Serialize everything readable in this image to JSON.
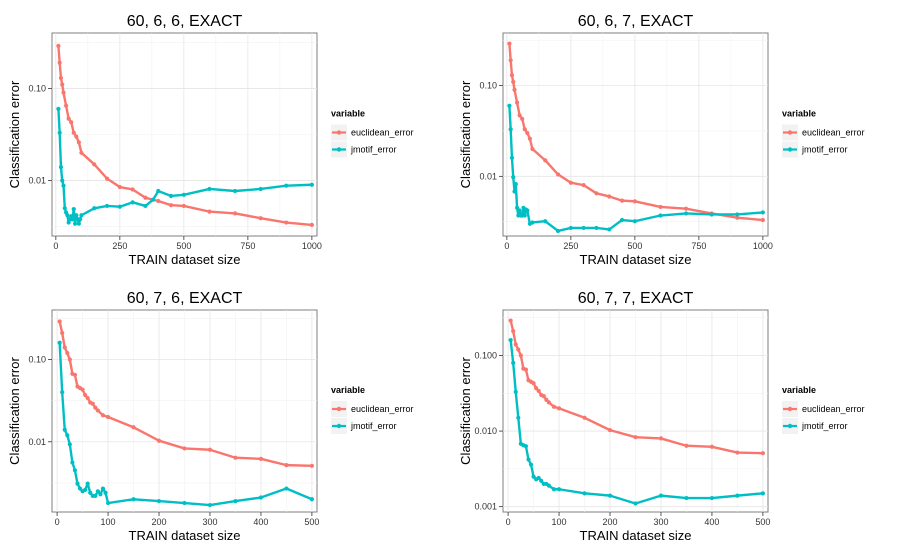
{
  "chart_data": [
    {
      "type": "line",
      "title": "60, 6, 6, EXACT",
      "xlabel": "TRAIN dataset size",
      "ylabel": "Classification error",
      "scale_y": "log10",
      "xlim": [
        -15,
        1020
      ],
      "ylim": [
        0.0025,
        0.4
      ],
      "x_ticks": [
        0,
        250,
        500,
        750,
        1000
      ],
      "x_tick_labels": [
        "0",
        "250",
        "500",
        "750",
        "1000"
      ],
      "y_ticks": [
        0.01,
        0.1
      ],
      "y_tick_labels": [
        "0.01",
        "0.10"
      ],
      "grid": true,
      "legend": {
        "title": "variable",
        "position": "right"
      },
      "series": [
        {
          "name": "euclidean_error",
          "color": "#F8766D",
          "x": [
            10,
            15,
            20,
            25,
            30,
            40,
            50,
            60,
            70,
            80,
            90,
            100,
            150,
            200,
            250,
            300,
            350,
            400,
            450,
            500,
            600,
            700,
            800,
            900,
            1000
          ],
          "y": [
            0.29,
            0.19,
            0.13,
            0.11,
            0.09,
            0.065,
            0.047,
            0.043,
            0.033,
            0.03,
            0.026,
            0.02,
            0.015,
            0.0105,
            0.0085,
            0.008,
            0.0065,
            0.006,
            0.0054,
            0.0053,
            0.0046,
            0.0044,
            0.0039,
            0.0035,
            0.0033
          ]
        },
        {
          "name": "jmotif_error",
          "color": "#00BFC4",
          "x": [
            10,
            15,
            20,
            25,
            30,
            35,
            40,
            45,
            50,
            55,
            60,
            65,
            70,
            75,
            80,
            85,
            90,
            95,
            100,
            150,
            200,
            250,
            300,
            350,
            380,
            400,
            450,
            500,
            600,
            700,
            800,
            900,
            1000
          ],
          "y": [
            0.06,
            0.033,
            0.014,
            0.01,
            0.0088,
            0.005,
            0.0045,
            0.0042,
            0.0035,
            0.0038,
            0.0041,
            0.0038,
            0.0049,
            0.0034,
            0.0042,
            0.0038,
            0.0034,
            0.0038,
            0.0042,
            0.005,
            0.0053,
            0.0052,
            0.0058,
            0.0053,
            0.0062,
            0.0077,
            0.0068,
            0.007,
            0.0081,
            0.0077,
            0.0081,
            0.0088,
            0.009
          ]
        }
      ]
    },
    {
      "type": "line",
      "title": "60, 6, 7, EXACT",
      "xlabel": "TRAIN dataset size",
      "ylabel": "Classification error",
      "scale_y": "log10",
      "xlim": [
        -15,
        1020
      ],
      "ylim": [
        0.0022,
        0.38
      ],
      "x_ticks": [
        0,
        250,
        500,
        750,
        1000
      ],
      "x_tick_labels": [
        "0",
        "250",
        "500",
        "750",
        "1000"
      ],
      "y_ticks": [
        0.01,
        0.1
      ],
      "y_tick_labels": [
        "0.01",
        "0.10"
      ],
      "grid": true,
      "legend": {
        "title": "variable",
        "position": "right"
      },
      "series": [
        {
          "name": "euclidean_error",
          "color": "#F8766D",
          "x": [
            10,
            15,
            20,
            25,
            30,
            40,
            50,
            60,
            70,
            80,
            90,
            100,
            150,
            200,
            250,
            300,
            350,
            400,
            450,
            500,
            600,
            700,
            800,
            900,
            1000
          ],
          "y": [
            0.29,
            0.19,
            0.13,
            0.11,
            0.09,
            0.065,
            0.047,
            0.043,
            0.033,
            0.03,
            0.026,
            0.02,
            0.015,
            0.0105,
            0.0085,
            0.008,
            0.0065,
            0.006,
            0.0054,
            0.0053,
            0.0046,
            0.0044,
            0.0039,
            0.0035,
            0.0033
          ]
        },
        {
          "name": "jmotif_error",
          "color": "#00BFC4",
          "x": [
            10,
            15,
            20,
            25,
            30,
            35,
            40,
            45,
            50,
            55,
            60,
            65,
            70,
            75,
            80,
            90,
            100,
            150,
            200,
            250,
            300,
            350,
            400,
            450,
            500,
            600,
            700,
            800,
            900,
            1000
          ],
          "y": [
            0.06,
            0.033,
            0.016,
            0.0098,
            0.0068,
            0.0082,
            0.0045,
            0.0037,
            0.0042,
            0.0037,
            0.0037,
            0.0045,
            0.0037,
            0.0043,
            0.0042,
            0.003,
            0.0031,
            0.0032,
            0.0025,
            0.0027,
            0.0027,
            0.0027,
            0.0026,
            0.0033,
            0.0032,
            0.0037,
            0.0039,
            0.0038,
            0.0038,
            0.004
          ]
        }
      ]
    },
    {
      "type": "line",
      "title": "60, 7, 6, EXACT",
      "xlabel": "TRAIN dataset size",
      "ylabel": "Classification error",
      "scale_y": "log10",
      "xlim": [
        -10,
        510
      ],
      "ylim": [
        0.0014,
        0.4
      ],
      "x_ticks": [
        0,
        100,
        200,
        300,
        400,
        500
      ],
      "x_tick_labels": [
        "0",
        "100",
        "200",
        "300",
        "400",
        "500"
      ],
      "y_ticks": [
        0.01,
        0.1
      ],
      "y_tick_labels": [
        "0.01",
        "0.10"
      ],
      "grid": true,
      "legend": {
        "title": "variable",
        "position": "right"
      },
      "series": [
        {
          "name": "euclidean_error",
          "color": "#F8766D",
          "x": [
            5,
            10,
            15,
            20,
            25,
            30,
            35,
            40,
            45,
            50,
            55,
            60,
            65,
            70,
            75,
            80,
            90,
            100,
            150,
            200,
            250,
            300,
            350,
            400,
            450,
            500
          ],
          "y": [
            0.29,
            0.21,
            0.14,
            0.12,
            0.1,
            0.067,
            0.065,
            0.047,
            0.045,
            0.043,
            0.037,
            0.034,
            0.03,
            0.029,
            0.026,
            0.024,
            0.021,
            0.02,
            0.015,
            0.0103,
            0.0083,
            0.008,
            0.0064,
            0.0062,
            0.0052,
            0.0051
          ]
        },
        {
          "name": "jmotif_error",
          "color": "#00BFC4",
          "x": [
            5,
            10,
            15,
            20,
            25,
            30,
            35,
            40,
            45,
            50,
            55,
            60,
            65,
            70,
            75,
            80,
            85,
            90,
            95,
            100,
            150,
            200,
            250,
            300,
            350,
            400,
            450,
            500
          ],
          "y": [
            0.16,
            0.04,
            0.014,
            0.012,
            0.0093,
            0.0056,
            0.0045,
            0.0031,
            0.0027,
            0.0025,
            0.0026,
            0.0031,
            0.0024,
            0.0022,
            0.0022,
            0.0025,
            0.0023,
            0.0027,
            0.0024,
            0.0018,
            0.002,
            0.0019,
            0.0018,
            0.0017,
            0.0019,
            0.0021,
            0.0027,
            0.002
          ]
        }
      ]
    },
    {
      "type": "line",
      "title": "60, 7, 7, EXACT",
      "xlabel": "TRAIN dataset size",
      "ylabel": "Classification error",
      "scale_y": "log10",
      "xlim": [
        -10,
        510
      ],
      "ylim": [
        0.00085,
        0.4
      ],
      "x_ticks": [
        0,
        100,
        200,
        300,
        400,
        500
      ],
      "x_tick_labels": [
        "0",
        "100",
        "200",
        "300",
        "400",
        "500"
      ],
      "y_ticks": [
        0.001,
        0.01,
        0.1
      ],
      "y_tick_labels": [
        "0.001",
        "0.010",
        "0.100"
      ],
      "grid": true,
      "legend": {
        "title": "variable",
        "position": "right"
      },
      "series": [
        {
          "name": "euclidean_error",
          "color": "#F8766D",
          "x": [
            5,
            10,
            15,
            20,
            25,
            30,
            35,
            40,
            45,
            50,
            55,
            60,
            65,
            70,
            75,
            80,
            90,
            100,
            150,
            200,
            250,
            300,
            350,
            400,
            450,
            500
          ],
          "y": [
            0.29,
            0.21,
            0.14,
            0.12,
            0.1,
            0.067,
            0.065,
            0.047,
            0.045,
            0.043,
            0.037,
            0.034,
            0.03,
            0.029,
            0.026,
            0.024,
            0.021,
            0.02,
            0.015,
            0.0103,
            0.0083,
            0.008,
            0.0064,
            0.0062,
            0.0052,
            0.0051
          ]
        },
        {
          "name": "jmotif_error",
          "color": "#00BFC4",
          "x": [
            5,
            10,
            15,
            20,
            25,
            30,
            35,
            40,
            45,
            50,
            55,
            60,
            65,
            70,
            75,
            80,
            90,
            100,
            150,
            200,
            250,
            300,
            350,
            400,
            450,
            500
          ],
          "y": [
            0.16,
            0.08,
            0.033,
            0.015,
            0.0068,
            0.0065,
            0.0063,
            0.0042,
            0.0036,
            0.0025,
            0.0023,
            0.0024,
            0.0022,
            0.002,
            0.002,
            0.0019,
            0.0017,
            0.0017,
            0.0015,
            0.0014,
            0.0011,
            0.0014,
            0.0013,
            0.0013,
            0.0014,
            0.0015
          ]
        }
      ]
    }
  ]
}
